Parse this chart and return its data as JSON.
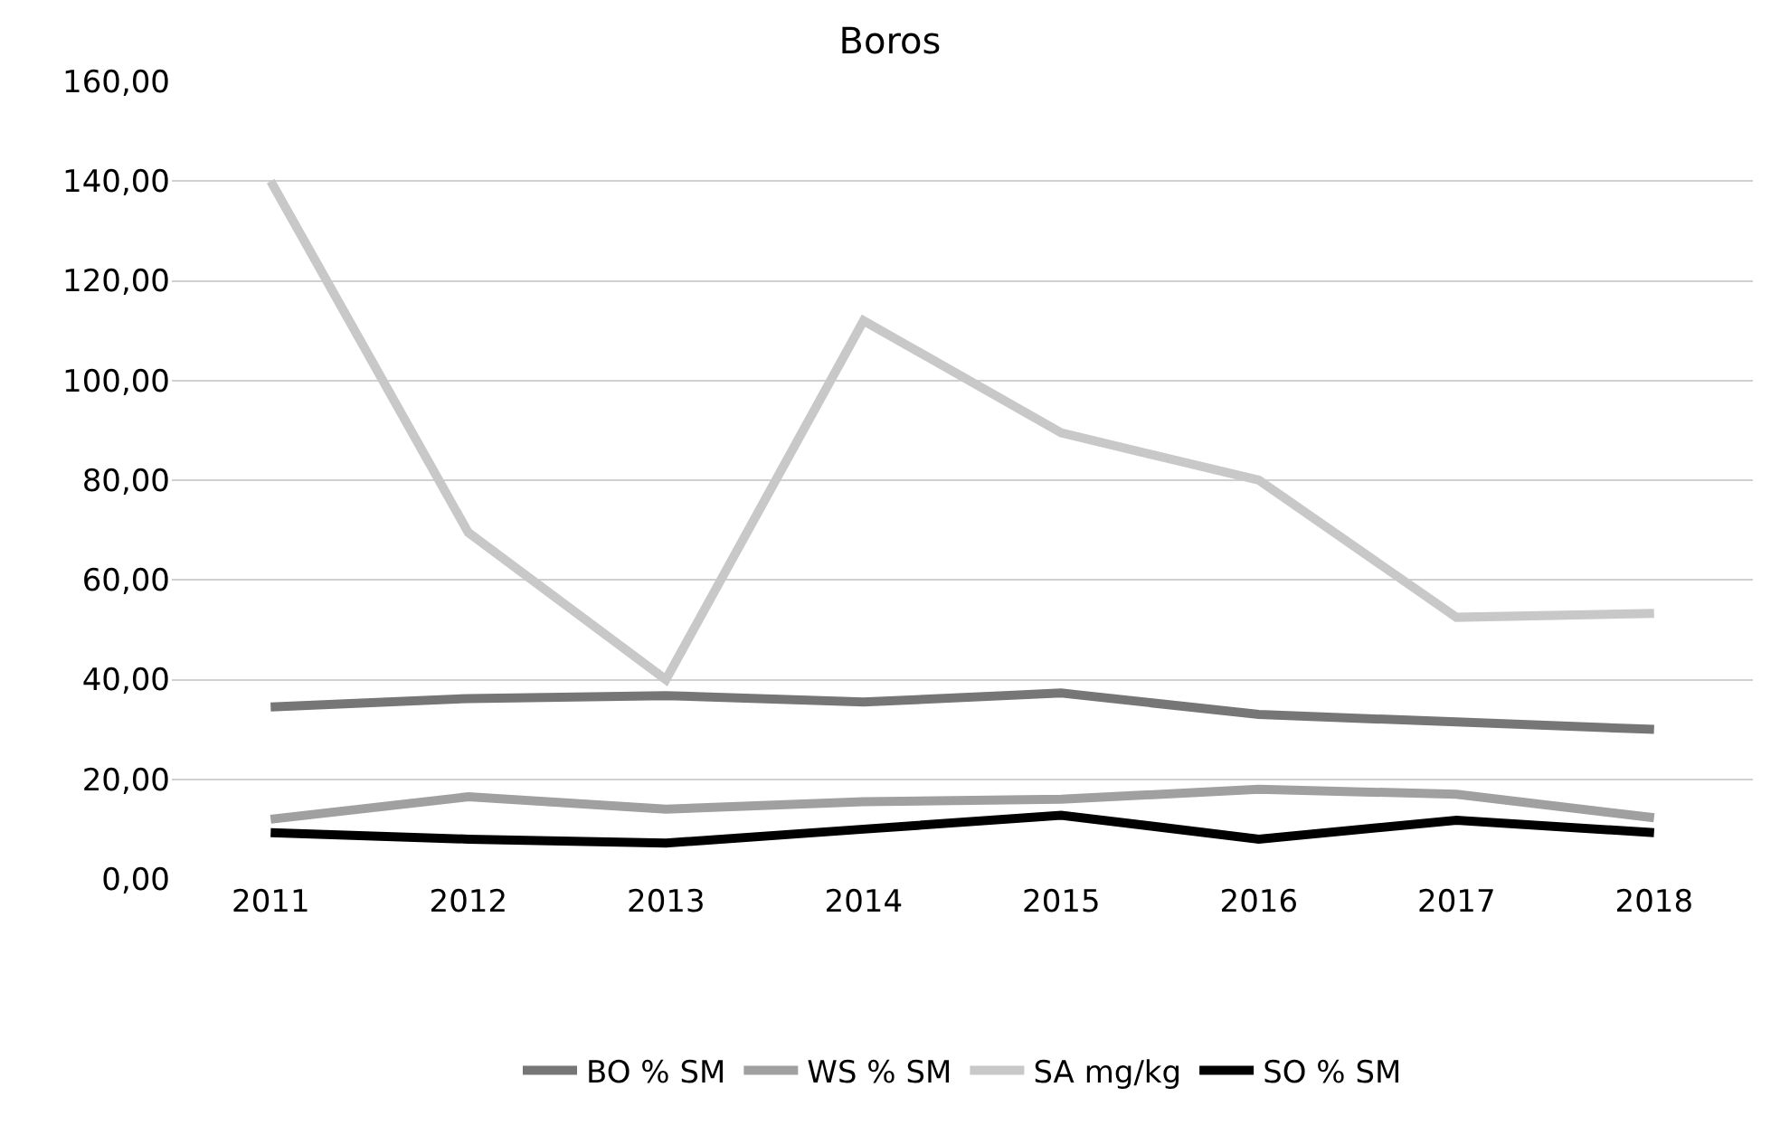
{
  "chart_data": {
    "type": "line",
    "title": "Boros",
    "categories": [
      "2011",
      "2012",
      "2013",
      "2014",
      "2015",
      "2016",
      "2017",
      "2018"
    ],
    "series": [
      {
        "name": "BO % SM",
        "color": "#767676",
        "values": [
          34.5,
          36.2,
          36.8,
          35.5,
          37.3,
          33.0,
          31.5,
          30.0
        ]
      },
      {
        "name": "WS % SM",
        "color": "#a0a0a0",
        "values": [
          12.0,
          16.5,
          14.0,
          15.5,
          16.0,
          18.0,
          17.0,
          12.3
        ]
      },
      {
        "name": "SA mg/kg",
        "color": "#c8c8c8",
        "values": [
          140.0,
          69.5,
          40.0,
          112.0,
          89.5,
          80.0,
          52.5,
          53.3
        ]
      },
      {
        "name": "SO % SM",
        "color": "#000000",
        "values": [
          9.3,
          8.0,
          7.2,
          10.0,
          12.8,
          8.0,
          11.8,
          9.3
        ]
      }
    ],
    "ylim": [
      0,
      160
    ],
    "yticks": [
      {
        "value": 0,
        "label": "0,00"
      },
      {
        "value": 20,
        "label": "20,00"
      },
      {
        "value": 40,
        "label": "40,00"
      },
      {
        "value": 60,
        "label": "60,00"
      },
      {
        "value": 80,
        "label": "80,00"
      },
      {
        "value": 100,
        "label": "100,00"
      },
      {
        "value": 120,
        "label": "120,00"
      },
      {
        "value": 140,
        "label": "140,00"
      },
      {
        "value": 160,
        "label": "160,00"
      }
    ],
    "grid": "y",
    "legend": "bottom",
    "marker": "none",
    "line_style": "solid"
  }
}
